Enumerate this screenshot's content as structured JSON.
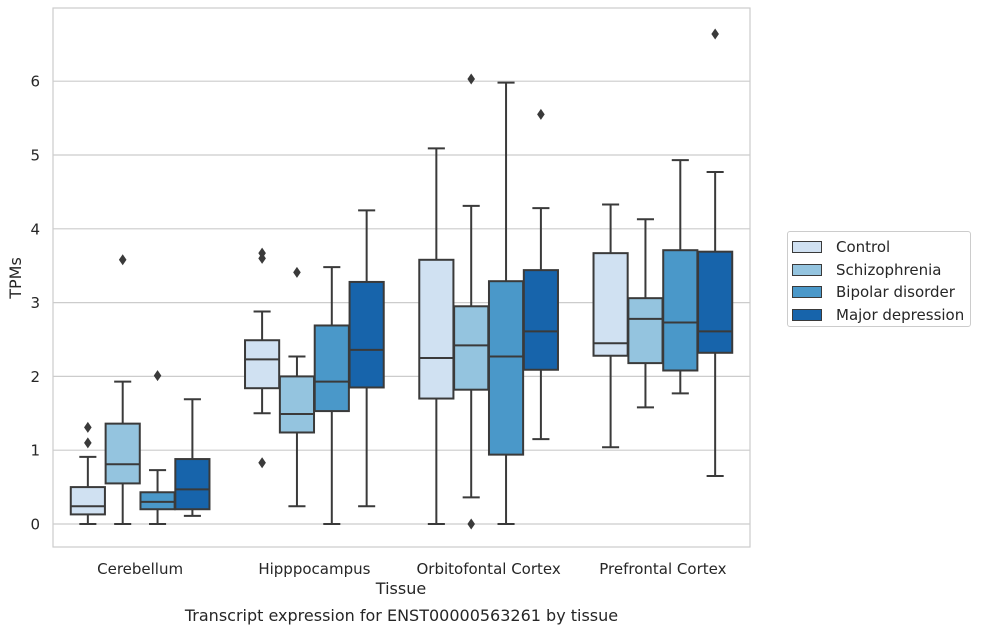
{
  "chart_data": {
    "type": "box",
    "title": "Transcript expression for ENST00000563261 by tissue",
    "xlabel": "Tissue",
    "ylabel": "TPMs",
    "ylim": [
      -0.32,
      7.0
    ],
    "yticks": [
      0,
      1,
      2,
      3,
      4,
      5,
      6
    ],
    "grid": true,
    "legend_placement": "right",
    "categories": [
      "Cerebellum",
      "Hipppocampus",
      "Orbitofontal Cortex",
      "Prefrontal Cortex"
    ],
    "series": [
      {
        "name": "Control",
        "color": "#d0e1f2",
        "boxes": [
          {
            "whislo": 0.0,
            "q1": 0.13,
            "med": 0.24,
            "q3": 0.5,
            "whishi": 0.91,
            "fliers": [
              1.1,
              1.31
            ]
          },
          {
            "whislo": 1.5,
            "q1": 1.84,
            "med": 2.23,
            "q3": 2.49,
            "whishi": 2.88,
            "fliers": [
              3.6,
              3.67,
              0.83
            ]
          },
          {
            "whislo": 0.0,
            "q1": 1.7,
            "med": 2.25,
            "q3": 3.58,
            "whishi": 5.09,
            "fliers": []
          },
          {
            "whislo": 1.04,
            "q1": 2.28,
            "med": 2.45,
            "q3": 3.67,
            "whishi": 4.33,
            "fliers": []
          }
        ]
      },
      {
        "name": "Schizophrenia",
        "color": "#94c4df",
        "boxes": [
          {
            "whislo": 0.0,
            "q1": 0.55,
            "med": 0.81,
            "q3": 1.36,
            "whishi": 1.93,
            "fliers": [
              3.58
            ]
          },
          {
            "whislo": 0.24,
            "q1": 1.24,
            "med": 1.49,
            "q3": 2.0,
            "whishi": 2.27,
            "fliers": [
              3.41
            ]
          },
          {
            "whislo": 0.36,
            "q1": 1.82,
            "med": 2.42,
            "q3": 2.95,
            "whishi": 4.31,
            "fliers": [
              6.03,
              0.0
            ]
          },
          {
            "whislo": 1.58,
            "q1": 2.18,
            "med": 2.78,
            "q3": 3.06,
            "whishi": 4.13,
            "fliers": []
          }
        ]
      },
      {
        "name": "Bipolar disorder",
        "color": "#4a98c9",
        "boxes": [
          {
            "whislo": 0.0,
            "q1": 0.2,
            "med": 0.3,
            "q3": 0.43,
            "whishi": 0.73,
            "fliers": [
              2.01
            ]
          },
          {
            "whislo": 0.0,
            "q1": 1.53,
            "med": 1.93,
            "q3": 2.69,
            "whishi": 3.48,
            "fliers": []
          },
          {
            "whislo": 0.0,
            "q1": 0.94,
            "med": 2.27,
            "q3": 3.29,
            "whishi": 5.98,
            "fliers": []
          },
          {
            "whislo": 1.77,
            "q1": 2.08,
            "med": 2.73,
            "q3": 3.71,
            "whishi": 4.93,
            "fliers": []
          }
        ]
      },
      {
        "name": "Major depression",
        "color": "#1764ab",
        "boxes": [
          {
            "whislo": 0.11,
            "q1": 0.2,
            "med": 0.47,
            "q3": 0.88,
            "whishi": 1.69,
            "fliers": []
          },
          {
            "whislo": 0.24,
            "q1": 1.85,
            "med": 2.36,
            "q3": 3.28,
            "whishi": 4.25,
            "fliers": []
          },
          {
            "whislo": 1.15,
            "q1": 2.09,
            "med": 2.61,
            "q3": 3.44,
            "whishi": 4.28,
            "fliers": [
              5.55
            ]
          },
          {
            "whislo": 0.65,
            "q1": 2.32,
            "med": 2.61,
            "q3": 3.69,
            "whishi": 4.77,
            "fliers": [
              6.64
            ]
          }
        ]
      }
    ]
  }
}
